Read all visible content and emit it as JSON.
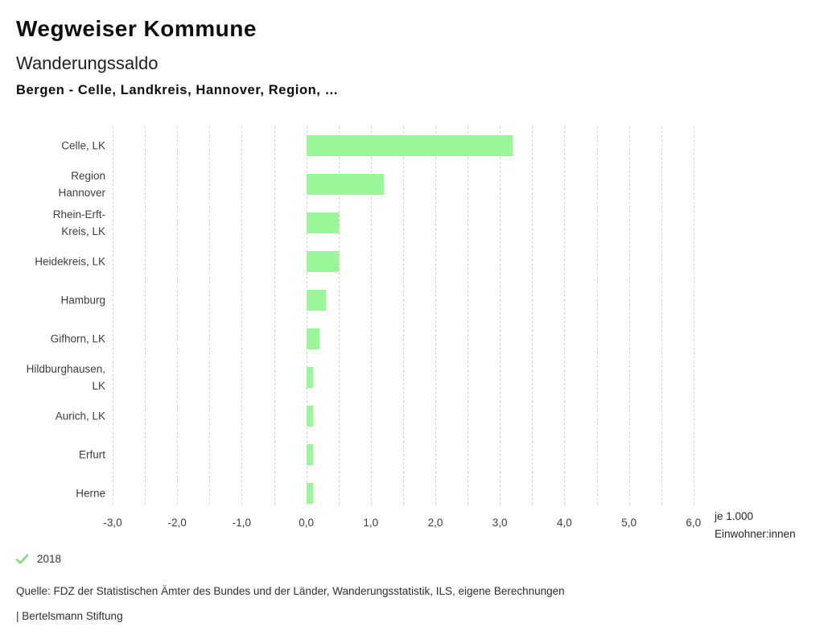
{
  "header": {
    "title": "Wegweiser Kommune",
    "subtitle": "Wanderungssaldo",
    "selection": "Bergen - Celle, Landkreis, Hannover, Region, …"
  },
  "chart_data": {
    "type": "bar",
    "orientation": "horizontal",
    "title": "Wanderungssaldo",
    "categories": [
      "Celle, LK",
      "Region Hannover",
      "Rhein-Erft-Kreis, LK",
      "Heidekreis, LK",
      "Hamburg",
      "Gifhorn, LK",
      "Hildburghausen, LK",
      "Aurich, LK",
      "Erfurt",
      "Herne"
    ],
    "category_label_lines": [
      [
        "Celle, LK"
      ],
      [
        "Region",
        "Hannover"
      ],
      [
        "Rhein-Erft-",
        "Kreis, LK"
      ],
      [
        "Heidekreis, LK"
      ],
      [
        "Hamburg"
      ],
      [
        "Gifhorn, LK"
      ],
      [
        "Hildburghausen,",
        "LK"
      ],
      [
        "Aurich, LK"
      ],
      [
        "Erfurt"
      ],
      [
        "Herne"
      ]
    ],
    "series": [
      {
        "name": "2018",
        "values": [
          3.2,
          1.2,
          0.5,
          0.5,
          0.3,
          0.2,
          0.1,
          0.1,
          0.1,
          0.1
        ]
      }
    ],
    "xlim": [
      -3.0,
      6.0
    ],
    "x_minor_step": 0.5,
    "x_major_ticks": [
      -3,
      -2,
      -1,
      0,
      1,
      2,
      3,
      4,
      5,
      6
    ],
    "x_tick_labels": [
      "-3,0",
      "-2,0",
      "-1,0",
      "0,0",
      "1,0",
      "2,0",
      "3,0",
      "4,0",
      "5,0",
      "6,0"
    ],
    "grid": "vertical-dashed",
    "legend_position": "bottom-left",
    "unit_label_lines": [
      "je 1.000",
      "Einwohner:innen"
    ]
  },
  "legend": {
    "year": "2018",
    "checkmark_icon": "check-icon"
  },
  "footer": {
    "source": "Quelle: FDZ der Statistischen Ämter des Bundes und der Länder, Wanderungsstatistik, ILS, eigene Berechnungen",
    "branding": "| Bertelsmann Stiftung"
  },
  "colors": {
    "bar": "#99f699",
    "checkmark": "#85d985",
    "grid": "#cbcbcb",
    "heading_text": "#0d0d0d",
    "label_text": "#3d3d3d"
  }
}
